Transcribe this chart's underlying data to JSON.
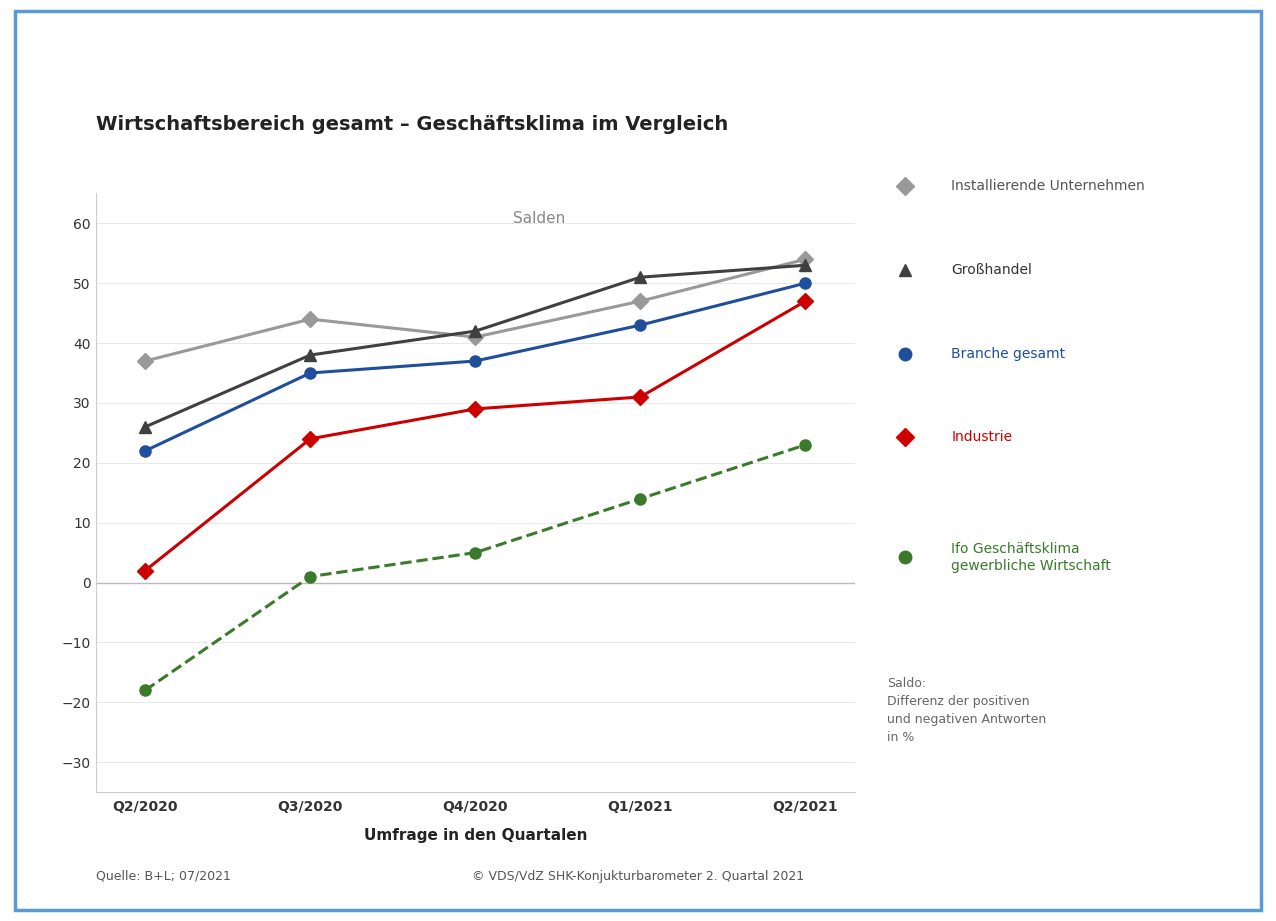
{
  "title": "Wirtschaftsbereich gesamt – Geschäftsklima im Vergleich",
  "subtitle": "Salden",
  "xlabel": "Umfrage in den Quartalen",
  "x_labels": [
    "Q2/2020",
    "Q3/2020",
    "Q4/2020",
    "Q1/2021",
    "Q2/2021"
  ],
  "x_positions": [
    0,
    1,
    2,
    3,
    4
  ],
  "ylim": [
    -35,
    65
  ],
  "yticks": [
    -30,
    -20,
    -10,
    0,
    10,
    20,
    30,
    40,
    50,
    60
  ],
  "series": [
    {
      "label": "Installierende Unternehmen",
      "color": "#999999",
      "values": [
        37,
        44,
        41,
        47,
        54
      ],
      "marker": "D",
      "linestyle": "-",
      "linewidth": 2.2,
      "markersize": 8,
      "legend_text_color": "#555555"
    },
    {
      "label": "Großhandel",
      "color": "#404040",
      "values": [
        26,
        38,
        42,
        51,
        53
      ],
      "marker": "^",
      "linestyle": "-",
      "linewidth": 2.2,
      "markersize": 9,
      "legend_text_color": "#333333"
    },
    {
      "label": "Branche gesamt",
      "color": "#1f4e9c",
      "values": [
        22,
        35,
        37,
        43,
        50
      ],
      "marker": "o",
      "linestyle": "-",
      "linewidth": 2.2,
      "markersize": 8,
      "legend_text_color": "#1f4e9c"
    },
    {
      "label": "Industrie",
      "color": "#cc0000",
      "values": [
        2,
        24,
        29,
        31,
        47
      ],
      "marker": "D",
      "linestyle": "-",
      "linewidth": 2.2,
      "markersize": 8,
      "legend_text_color": "#cc0000"
    },
    {
      "label": "Ifo Geschäftsklima\ngewerbliche Wirtschaft",
      "color": "#3a7a2a",
      "values": [
        -18,
        1,
        5,
        14,
        23
      ],
      "marker": "o",
      "linestyle": "--",
      "linewidth": 2.2,
      "markersize": 8,
      "legend_text_color": "#3a7a2a"
    }
  ],
  "zero_line_color": "#bbbbbb",
  "background_color": "#ffffff",
  "plot_bg_color": "#ffffff",
  "border_color": "#5b9bd5",
  "footnote_left": "Quelle: B+L; 07/2021",
  "footnote_right": "© VDS/VdZ SHK-Konjukturbarometer 2. Quartal 2021",
  "saldo_text": "Saldo:\nDifferenz der positiven\nund negativen Antworten\nin %"
}
